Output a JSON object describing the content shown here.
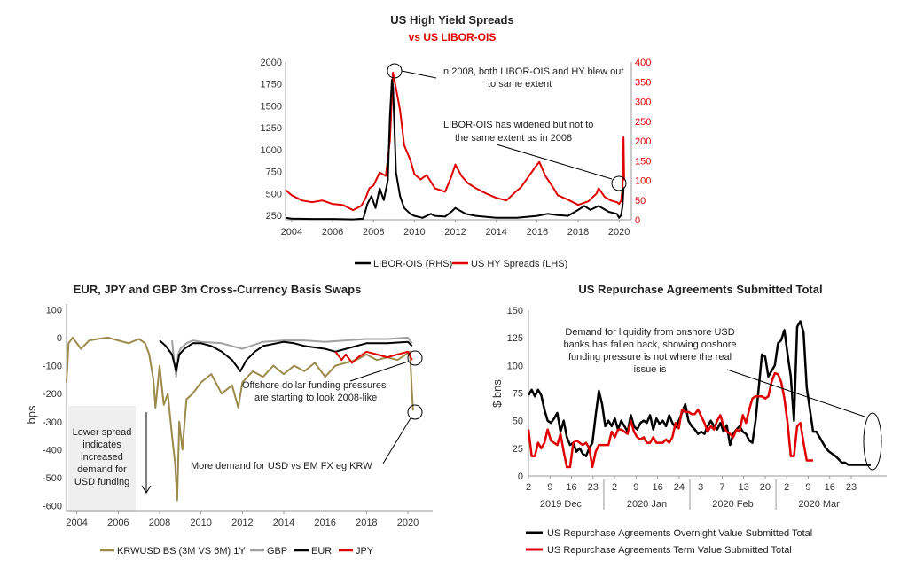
{
  "chart_data": [
    {
      "type": "line",
      "title": "US High Yield Spreads",
      "subtitle": "vs US LIBOR-OIS",
      "colors": {
        "hy": "#e00000",
        "libor": "#000000",
        "subtitle": "#e00000"
      },
      "x_ticks": [
        "2004",
        "2006",
        "2008",
        "2010",
        "2012",
        "2014",
        "2016",
        "2018",
        "2020"
      ],
      "xlim": [
        2003.7,
        2020.6
      ],
      "left_axis": {
        "ticks": [
          "250",
          "500",
          "750",
          "1000",
          "1250",
          "1500",
          "1750",
          "2000"
        ],
        "ylim": [
          200,
          2000
        ]
      },
      "right_axis": {
        "ticks": [
          "0",
          "50",
          "100",
          "150",
          "200",
          "250",
          "300",
          "350",
          "400"
        ],
        "ylim": [
          0,
          400
        ]
      },
      "series": [
        {
          "name": "US HY Spreads (LHS)",
          "axis": "left",
          "color": "#e00000",
          "x": [
            2003.7,
            2004.0,
            2004.5,
            2005.0,
            2005.5,
            2006.0,
            2006.5,
            2007.0,
            2007.4,
            2007.6,
            2007.8,
            2008.0,
            2008.3,
            2008.6,
            2008.8,
            2008.95,
            2009.1,
            2009.3,
            2009.5,
            2009.8,
            2010.0,
            2010.3,
            2010.6,
            2011.0,
            2011.5,
            2011.8,
            2012.0,
            2012.3,
            2012.6,
            2013.0,
            2013.5,
            2014.0,
            2014.5,
            2014.9,
            2015.2,
            2015.6,
            2015.9,
            2016.1,
            2016.4,
            2016.8,
            2017.0,
            2017.5,
            2018.0,
            2018.5,
            2018.9,
            2019.0,
            2019.3,
            2019.6,
            2019.9,
            2020.0,
            2020.1,
            2020.17,
            2020.22,
            2020.25
          ],
          "y": [
            540,
            480,
            420,
            400,
            420,
            380,
            370,
            310,
            360,
            440,
            560,
            590,
            740,
            700,
            1100,
            1880,
            1700,
            1450,
            1050,
            880,
            720,
            660,
            710,
            560,
            520,
            690,
            830,
            700,
            620,
            560,
            500,
            450,
            420,
            510,
            570,
            700,
            800,
            860,
            700,
            560,
            480,
            430,
            370,
            410,
            500,
            560,
            460,
            420,
            400,
            380,
            420,
            560,
            1140,
            650
          ]
        },
        {
          "name": "LIBOR-OIS (RHS)",
          "axis": "right",
          "color": "#000000",
          "x": [
            2003.7,
            2004.0,
            2005.0,
            2006.0,
            2007.0,
            2007.5,
            2007.7,
            2007.9,
            2008.1,
            2008.3,
            2008.5,
            2008.7,
            2008.8,
            2008.9,
            2008.95,
            2009.1,
            2009.3,
            2009.5,
            2009.8,
            2010.0,
            2010.4,
            2010.8,
            2011.0,
            2011.5,
            2011.8,
            2012.0,
            2012.5,
            2013.0,
            2014.0,
            2015.0,
            2016.0,
            2016.5,
            2017.0,
            2017.5,
            2018.0,
            2018.3,
            2018.6,
            2019.0,
            2019.5,
            2019.9,
            2020.0,
            2020.1,
            2020.17,
            2020.22,
            2020.25
          ],
          "y": [
            5,
            3,
            2,
            2,
            1,
            3,
            40,
            60,
            30,
            80,
            50,
            100,
            260,
            355,
            340,
            120,
            60,
            30,
            15,
            10,
            5,
            15,
            10,
            8,
            20,
            30,
            15,
            10,
            5,
            5,
            10,
            15,
            12,
            10,
            25,
            35,
            25,
            35,
            20,
            15,
            5,
            12,
            35,
            80,
            80
          ]
        }
      ],
      "annotations": [
        {
          "lines": [
            "In 2008, both LIBOR-OIS and HY blew out",
            "to same extent"
          ]
        },
        {
          "lines": [
            "LIBOR-OIS has widened but not to",
            "the same extent as in 2008"
          ]
        }
      ],
      "legend": [
        "LIBOR-OIS (RHS)",
        "US HY Spreads (LHS)"
      ]
    },
    {
      "type": "line",
      "title": "EUR, JPY and GBP 3m Cross-Currency Basis Swaps",
      "ylabel": "bps",
      "colors": {
        "krw": "#9b8a4a",
        "gbp": "#a0a0a0",
        "eur": "#000000",
        "jpy": "#e00000",
        "box": "#efefef"
      },
      "x_ticks": [
        "2004",
        "2006",
        "2008",
        "2010",
        "2012",
        "2014",
        "2016",
        "2018",
        "2020"
      ],
      "xlim": [
        2003.5,
        2021.2
      ],
      "y_ticks": [
        "100",
        "0",
        "-100",
        "-200",
        "-300",
        "-400",
        "-500",
        "-600"
      ],
      "ylim": [
        -620,
        120
      ],
      "series": [
        {
          "name": "KRWUSD BS (3M VS 6M) 1Y",
          "color": "#9b8a4a",
          "x": [
            2003.5,
            2003.6,
            2003.8,
            2004.2,
            2004.6,
            2005.0,
            2005.5,
            2006.0,
            2006.5,
            2007.0,
            2007.3,
            2007.5,
            2007.7,
            2007.8,
            2008.0,
            2008.2,
            2008.4,
            2008.6,
            2008.75,
            2008.85,
            2008.95,
            2009.1,
            2009.3,
            2009.6,
            2010.0,
            2010.5,
            2011.0,
            2011.5,
            2011.8,
            2012.0,
            2012.5,
            2013.0,
            2013.5,
            2014.0,
            2014.5,
            2015.0,
            2015.5,
            2016.0,
            2016.5,
            2017.0,
            2017.5,
            2018.0,
            2018.5,
            2019.0,
            2019.5,
            2019.9,
            2020.1,
            2020.2,
            2020.25
          ],
          "y": [
            -160,
            -20,
            0,
            -40,
            -10,
            -5,
            0,
            -10,
            -20,
            -5,
            -20,
            -60,
            -150,
            -250,
            -100,
            -240,
            -200,
            -350,
            -450,
            -580,
            -300,
            -400,
            -220,
            -200,
            -160,
            -130,
            -200,
            -170,
            -250,
            -160,
            -120,
            -140,
            -100,
            -130,
            -100,
            -120,
            -90,
            -140,
            -100,
            -90,
            -80,
            -60,
            -80,
            -70,
            -80,
            -60,
            -50,
            -200,
            -260
          ]
        },
        {
          "name": "GBP",
          "color": "#a0a0a0",
          "x": [
            2008.6,
            2008.7,
            2008.8,
            2008.9,
            2009.0,
            2009.3,
            2009.6,
            2010.0,
            2011.0,
            2012.0,
            2013.0,
            2014.0,
            2015.0,
            2016.0,
            2017.0,
            2018.0,
            2019.0,
            2020.0,
            2020.2
          ],
          "y": [
            -10,
            -80,
            -140,
            -60,
            -40,
            -20,
            -10,
            -15,
            -20,
            -40,
            -15,
            -10,
            -10,
            -15,
            -10,
            -5,
            -5,
            0,
            -20
          ]
        },
        {
          "name": "EUR",
          "color": "#000000",
          "x": [
            2008.0,
            2008.3,
            2008.6,
            2008.8,
            2008.95,
            2009.2,
            2009.6,
            2010.0,
            2010.5,
            2011.0,
            2011.5,
            2011.9,
            2012.2,
            2012.6,
            2013.0,
            2014.0,
            2014.5,
            2015.0,
            2016.0,
            2016.5,
            2017.0,
            2018.0,
            2019.0,
            2020.0,
            2020.2
          ],
          "y": [
            -10,
            -30,
            -60,
            -120,
            -60,
            -40,
            -20,
            -20,
            -30,
            -50,
            -80,
            -120,
            -80,
            -50,
            -30,
            -15,
            -20,
            -30,
            -40,
            -50,
            -40,
            -20,
            -20,
            -15,
            -30
          ]
        },
        {
          "name": "JPY",
          "color": "#e00000",
          "x": [
            2016.5,
            2016.8,
            2017.0,
            2017.3,
            2017.6,
            2018.0,
            2018.5,
            2019.0,
            2019.5,
            2020.0,
            2020.2
          ],
          "y": [
            -50,
            -80,
            -60,
            -90,
            -70,
            -50,
            -60,
            -70,
            -60,
            -50,
            -80
          ]
        }
      ],
      "annotations": [
        {
          "lines": [
            "Offshore dollar funding pressures",
            "are starting to look 2008-like"
          ]
        },
        {
          "lines": [
            "More demand for USD vs EM FX eg KRW"
          ]
        },
        {
          "lines": [
            "Lower spread",
            "indicates",
            "increased",
            "demand for",
            "USD funding"
          ]
        }
      ],
      "legend": [
        "KRWUSD BS (3M VS 6M) 1Y",
        "GBP",
        "EUR",
        "JPY"
      ]
    },
    {
      "type": "line",
      "title": "US Repurchase Agreements Submitted Total",
      "ylabel": "$ bns",
      "colors": {
        "overnight": "#000000",
        "term": "#e00000"
      },
      "x_ticks": [
        "2",
        "9",
        "16",
        "23",
        "2",
        "9",
        "16",
        "24",
        "3",
        "7",
        "13",
        "20",
        "2",
        "9",
        "16",
        "23"
      ],
      "month_labels": [
        "2019 Dec",
        "2020 Jan",
        "2020 Feb",
        "2020 Mar"
      ],
      "xlim": [
        0,
        112
      ],
      "y_ticks": [
        "0",
        "25",
        "50",
        "75",
        "100",
        "125",
        "150"
      ],
      "ylim": [
        0,
        150
      ],
      "series": [
        {
          "name": "US Repurchase Agreements Overnight Value Submitted Total",
          "color": "#000000",
          "x": [
            0,
            1,
            2,
            3,
            4,
            5,
            6,
            7,
            8,
            9,
            10,
            11,
            12,
            13,
            14,
            15,
            16,
            17,
            18,
            19,
            20,
            21,
            22,
            23,
            24,
            25,
            26,
            27,
            28,
            29,
            30,
            31,
            32,
            33,
            34,
            35,
            36,
            37,
            38,
            39,
            40,
            41,
            42,
            43,
            44,
            45,
            46,
            47,
            48,
            49,
            50,
            51,
            52,
            53,
            54,
            55,
            56,
            57,
            58,
            59,
            60,
            61,
            62,
            63,
            64,
            65,
            66,
            67,
            68,
            69,
            70,
            71,
            72,
            73,
            74,
            75,
            76,
            77,
            78,
            79,
            80,
            81,
            82,
            83,
            84,
            85,
            86,
            87,
            88,
            89,
            90,
            91,
            92,
            93,
            94,
            95,
            96,
            97,
            98,
            99,
            100,
            101,
            102,
            103,
            104,
            105,
            106,
            107
          ],
          "y": [
            73,
            78,
            72,
            78,
            73,
            60,
            50,
            48,
            52,
            57,
            40,
            50,
            35,
            28,
            30,
            22,
            25,
            20,
            18,
            25,
            30,
            55,
            77,
            65,
            45,
            50,
            45,
            52,
            42,
            50,
            45,
            40,
            55,
            45,
            42,
            48,
            50,
            48,
            55,
            42,
            52,
            47,
            50,
            45,
            55,
            48,
            44,
            50,
            57,
            65,
            50,
            45,
            42,
            38,
            40,
            38,
            45,
            50,
            45,
            42,
            48,
            40,
            46,
            28,
            38,
            42,
            45,
            40,
            38,
            32,
            30,
            50,
            80,
            110,
            108,
            90,
            95,
            100,
            120,
            123,
            132,
            110,
            90,
            50,
            135,
            140,
            130,
            80,
            60,
            40,
            40,
            35,
            30,
            25,
            22,
            20,
            18,
            15,
            12,
            12,
            10,
            10,
            10,
            10,
            10,
            10,
            10,
            10
          ]
        },
        {
          "name": "US Repurchase Agreements Term Value Submitted Total",
          "color": "#e00000",
          "x": [
            0,
            1,
            2,
            3,
            4,
            5,
            6,
            7,
            8,
            9,
            10,
            11,
            12,
            13,
            14,
            15,
            16,
            17,
            18,
            19,
            20,
            21,
            22,
            23,
            24,
            25,
            26,
            27,
            28,
            29,
            30,
            31,
            32,
            33,
            34,
            35,
            36,
            37,
            38,
            39,
            40,
            41,
            42,
            43,
            44,
            45,
            46,
            47,
            48,
            49,
            50,
            51,
            52,
            53,
            54,
            55,
            56,
            57,
            58,
            59,
            60,
            61,
            62,
            63,
            64,
            65,
            66,
            67,
            68,
            69,
            70,
            71,
            72,
            73,
            74,
            75,
            76,
            77,
            78,
            79,
            80,
            81,
            82,
            83,
            84,
            85,
            86,
            87,
            88,
            89
          ],
          "y": [
            42,
            18,
            18,
            30,
            25,
            30,
            42,
            32,
            30,
            28,
            38,
            22,
            8,
            8,
            30,
            32,
            30,
            28,
            30,
            25,
            8,
            22,
            28,
            28,
            28,
            28,
            40,
            35,
            42,
            42,
            40,
            38,
            50,
            40,
            35,
            33,
            35,
            30,
            30,
            35,
            30,
            30,
            30,
            33,
            30,
            35,
            48,
            43,
            60,
            58,
            58,
            56,
            56,
            60,
            54,
            48,
            40,
            45,
            42,
            50,
            55,
            45,
            40,
            38,
            35,
            42,
            40,
            55,
            48,
            60,
            70,
            72,
            72,
            72,
            70,
            72,
            85,
            93,
            92,
            85,
            70,
            48,
            18,
            18,
            45,
            48,
            30,
            14,
            14,
            14
          ]
        }
      ],
      "annotations": [
        {
          "lines": [
            "Demand for liquidity from onshore USD",
            "banks has fallen back, showing onshore",
            "funding pressure is not where the real",
            "issue is"
          ]
        }
      ],
      "legend": [
        "US Repurchase Agreements Overnight Value Submitted Total",
        "US Repurchase Agreements Term Value Submitted Total"
      ]
    }
  ]
}
